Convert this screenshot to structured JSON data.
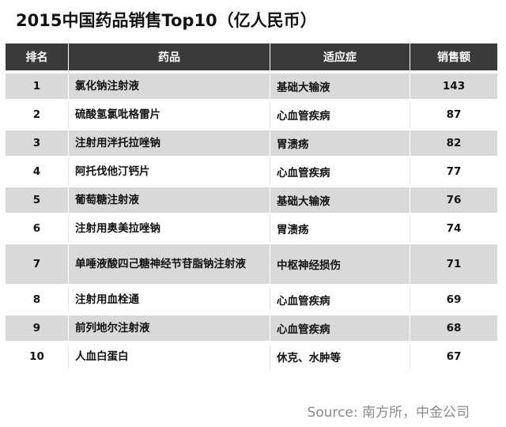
{
  "title": "2015中国药品销售Top10（亿人民币）",
  "table": {
    "headers": {
      "rank": "排名",
      "drug": "药品",
      "indication": "适应症",
      "sales": "销售额"
    },
    "rows": [
      {
        "rank": "1",
        "drug": "氯化钠注射液",
        "indication": "基础大输液",
        "sales": "143"
      },
      {
        "rank": "2",
        "drug": "硫酸氢氯吡格雷片",
        "indication": "心血管疾病",
        "sales": "87"
      },
      {
        "rank": "3",
        "drug": "注射用泮托拉唑钠",
        "indication": "胃溃疡",
        "sales": "82"
      },
      {
        "rank": "4",
        "drug": "阿托伐他汀钙片",
        "indication": "心血管疾病",
        "sales": "77"
      },
      {
        "rank": "5",
        "drug": "葡萄糖注射液",
        "indication": "基础大输液",
        "sales": "76"
      },
      {
        "rank": "6",
        "drug": "注射用奥美拉唑钠",
        "indication": "胃溃疡",
        "sales": "74"
      },
      {
        "rank": "7",
        "drug": "单唾液酸四己糖神经节苷脂钠注射液",
        "indication": "中枢神经损伤",
        "sales": "71"
      },
      {
        "rank": "8",
        "drug": "注射用血栓通",
        "indication": "心血管疾病",
        "sales": "69"
      },
      {
        "rank": "9",
        "drug": "前列地尔注射液",
        "indication": "心血管疾病",
        "sales": "68"
      },
      {
        "rank": "10",
        "drug": "人血白蛋白",
        "indication": "休克、水肿等",
        "sales": "67"
      }
    ]
  },
  "source": "Source: 南方所，中金公司",
  "colors": {
    "header_bg": "#3a3a3a",
    "row_shaded": "#d9d9d9",
    "source_text": "#8a8a8a"
  }
}
